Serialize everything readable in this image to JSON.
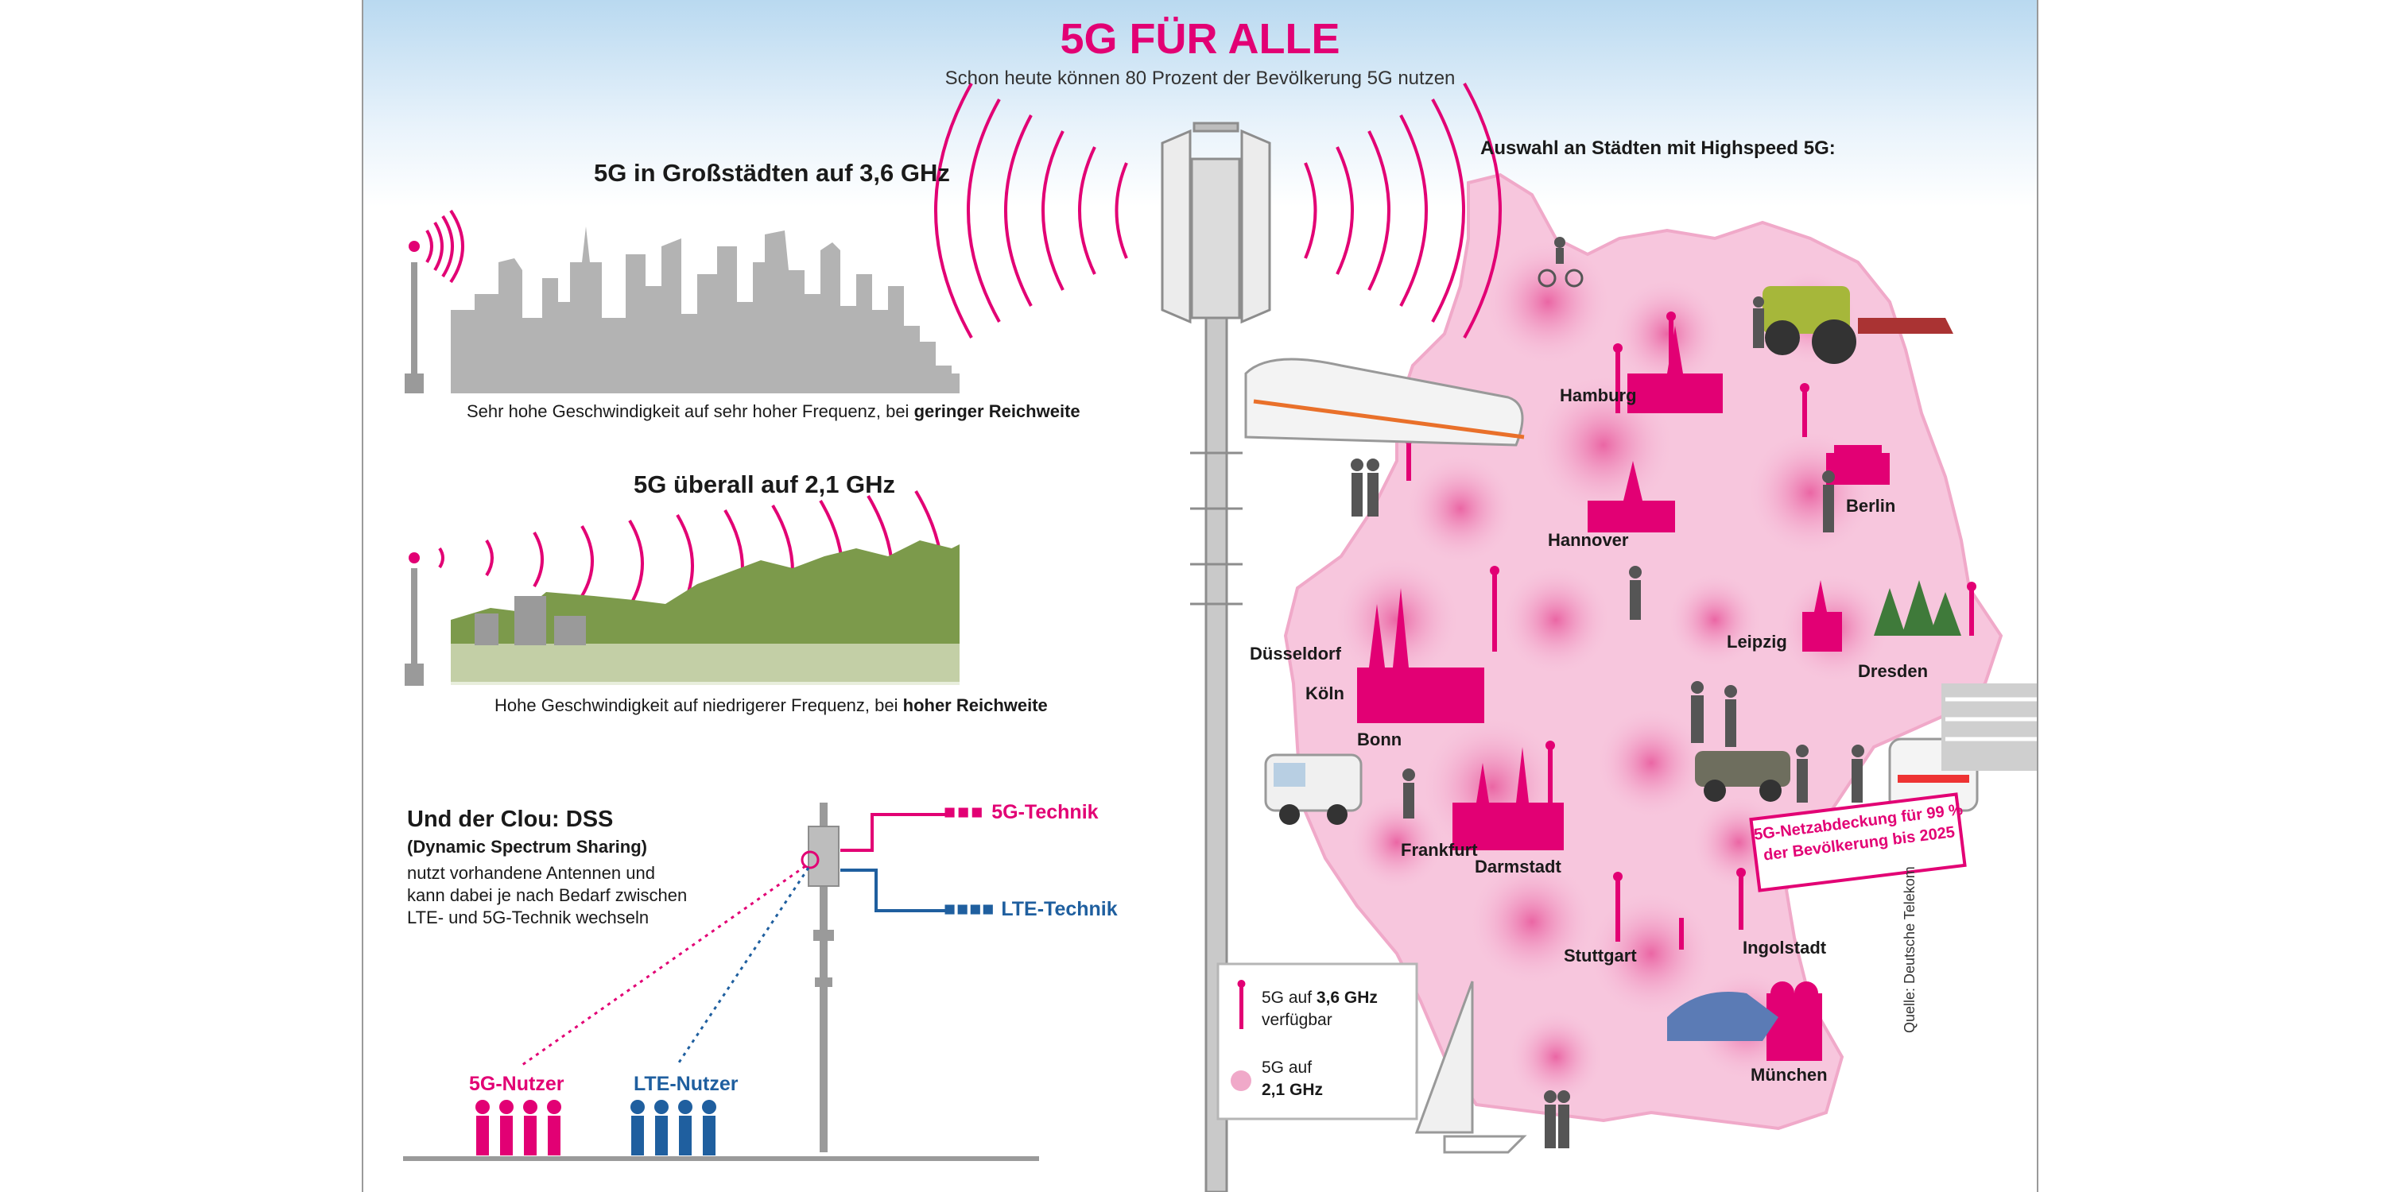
{
  "title": "5G FÜR ALLE",
  "subtitle": "Schon heute können 80 Prozent der Bevölkerung 5G nutzen",
  "section1": {
    "heading": "5G in Großstädten auf 3,6 GHz",
    "caption_plain": "Sehr hohe Geschwindigkeit auf sehr hoher Frequenz, bei ",
    "caption_bold": "geringer Reichweite"
  },
  "section2": {
    "heading": "5G überall auf 2,1 GHz",
    "caption_plain": "Hohe Geschwindigkeit auf niedrigerer Frequenz, bei ",
    "caption_bold": "hoher Reichweite"
  },
  "dss": {
    "heading": "Und der Clou: DSS",
    "subheading": "(Dynamic Spectrum Sharing)",
    "text_lines": [
      "nutzt vorhandene Antennen und",
      "kann dabei je nach Bedarf zwischen",
      "LTE- und 5G-Technik wechseln"
    ],
    "tech_5g": "5G-Technik",
    "tech_lte": "LTE-Technik",
    "user_5g": "5G-Nutzer",
    "user_lte": "LTE-Nutzer"
  },
  "map": {
    "heading": "Auswahl an Städten mit Highspeed 5G:",
    "cities": [
      "Hamburg",
      "Berlin",
      "Hannover",
      "Leipzig",
      "Dresden",
      "Düsseldorf",
      "Köln",
      "Bonn",
      "Frankfurt",
      "Darmstadt",
      "Stuttgart",
      "Ingolstadt",
      "München"
    ],
    "coverage_line1": "5G-Netzabdeckung für 99 %",
    "coverage_line2": "der Bevölkerung bis 2025"
  },
  "legend": {
    "item1_prefix": "5G auf ",
    "item1_bold": "3,6 GHz",
    "item1_suffix": "verfügbar",
    "item2_prefix": "5G auf",
    "item2_bold": "2,1 GHz"
  },
  "source": "Quelle: Deutsche Telekom",
  "colors": {
    "magenta": "#e20074",
    "lte_blue": "#1f5f9f",
    "skyline_gray": "#b3b3b3",
    "forest_green": "#7c9a4b",
    "coverage_pink": "#f4b3d3"
  }
}
